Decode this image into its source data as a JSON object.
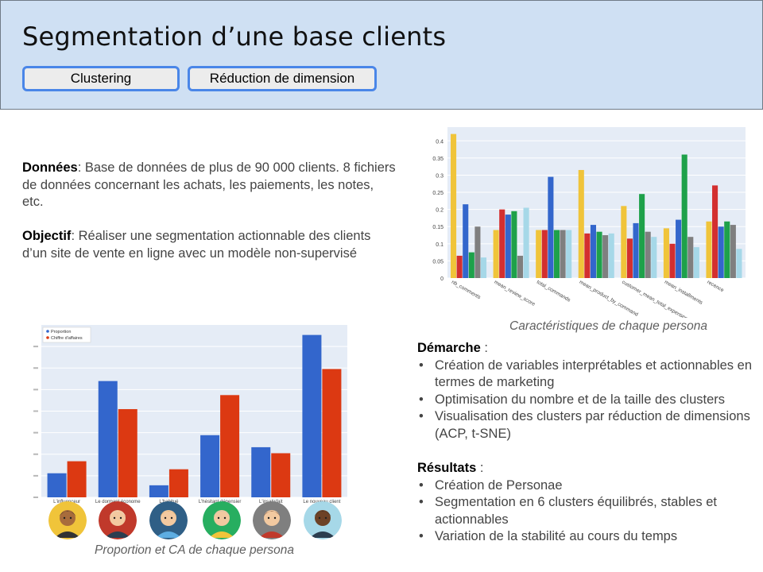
{
  "header": {
    "title": "Segmentation d’une base clients",
    "tabs": [
      "Clustering",
      "Réduction de dimension"
    ]
  },
  "intro": {
    "donnees_label": "Données",
    "donnees_text": ": Base de données de plus de 90 000 clients. 8 fichiers de données concernant les achats, les paiements, les notes, etc.",
    "objectif_label": "Objectif",
    "objectif_text": ": Réaliser une segmentation actionnable des clients d’un site de vente en ligne avec un modèle non-supervisé"
  },
  "demarche": {
    "label": "Démarche",
    "suffix": " :",
    "items": [
      "Création de variables interprétables et actionnables en termes de marketing",
      "Optimisation du nombre et de la taille des clusters",
      "Visualisation des clusters par réduction de dimensions (ACP, t-SNE)"
    ]
  },
  "resultats": {
    "label": "Résultats",
    "suffix": " :",
    "items": [
      "Création de Personae",
      "Segmentation en 6 clusters équilibrés, stables et actionnables",
      "Variation de la stabilité au cours du temps"
    ]
  },
  "captions": {
    "top_chart": "Caractéristiques de chaque persona",
    "bottom_chart": "Proportion et CA de chaque persona"
  },
  "colors": {
    "header_bg": "#cfe0f3",
    "tab_border": "#4a86e8",
    "plot_bg": "#e5ecf6"
  },
  "chart_data": [
    {
      "type": "bar",
      "title": "",
      "categories": [
        "nb_comments",
        "mean_review_score",
        "total_commands",
        "mean_product_by_command",
        "customer_mean_total_expenses",
        "mean_installments",
        "recence"
      ],
      "ylim": [
        0,
        0.44
      ],
      "yticks": [
        "0",
        "0.05",
        "0.1",
        "0.15",
        "0.2",
        "0.25",
        "0.3",
        "0.35",
        "0.4"
      ],
      "series_colors": [
        "#f0c43a",
        "#d32f2f",
        "#3366cc",
        "#1ea14a",
        "#7f7f7f",
        "#a6d8e8"
      ],
      "series": [
        {
          "values": [
            0.42,
            0.14,
            0.14,
            0.315,
            0.21,
            0.145,
            0.165
          ]
        },
        {
          "values": [
            0.065,
            0.2,
            0.14,
            0.13,
            0.115,
            0.1,
            0.27
          ]
        },
        {
          "values": [
            0.215,
            0.185,
            0.295,
            0.155,
            0.16,
            0.17,
            0.15
          ]
        },
        {
          "values": [
            0.075,
            0.195,
            0.14,
            0.135,
            0.245,
            0.36,
            0.165
          ]
        },
        {
          "values": [
            0.15,
            0.065,
            0.14,
            0.125,
            0.135,
            0.12,
            0.155
          ]
        },
        {
          "values": [
            0.06,
            0.205,
            0.14,
            0.13,
            0.12,
            0.09,
            0.085
          ]
        }
      ],
      "grid": true
    },
    {
      "type": "bar",
      "title": "",
      "categories": [
        "L'influenceur",
        "Le dormant économe",
        "L'habitué",
        "L'hésitant dépensier",
        "L'insatisfait",
        "Le nouveau client"
      ],
      "legend_position": "top-left",
      "series": [
        {
          "name": "Proportion",
          "color": "#3366cc",
          "values": [
            0.06,
            0.29,
            0.03,
            0.155,
            0.125,
            0.405
          ]
        },
        {
          "name": "Chiffre d'affaires",
          "color": "#dc3912",
          "values": [
            0.09,
            0.22,
            0.07,
            0.255,
            0.11,
            0.32
          ]
        }
      ],
      "ylim": [
        0,
        0.43
      ],
      "grid": true
    }
  ],
  "personas": [
    {
      "name": "L'influenceur",
      "bg": "#f0c43a",
      "skin": "#a86c3c",
      "hair": "#222222",
      "shirt": "#333333"
    },
    {
      "name": "Le dormant économe",
      "bg": "#c0392b",
      "skin": "#f2c9a0",
      "hair": "#e8e8e8",
      "shirt": "#2c3e50"
    },
    {
      "name": "L'habitué",
      "bg": "#2f5f86",
      "skin": "#f2c9a0",
      "hair": "#d9a441",
      "shirt": "#5dade2"
    },
    {
      "name": "L'hésitant dépensier",
      "bg": "#27ae60",
      "skin": "#f2c9a0",
      "hair": "#bdbdbd",
      "shirt": "#f0c43a"
    },
    {
      "name": "L'insatisfait",
      "bg": "#7f7f7f",
      "skin": "#f2c9a0",
      "hair": "#5b2c1a",
      "shirt": "#c0392b"
    },
    {
      "name": "Le nouveau client",
      "bg": "#a6d8e8",
      "skin": "#6d4226",
      "hair": "#222222",
      "shirt": "#2c3e50"
    }
  ]
}
